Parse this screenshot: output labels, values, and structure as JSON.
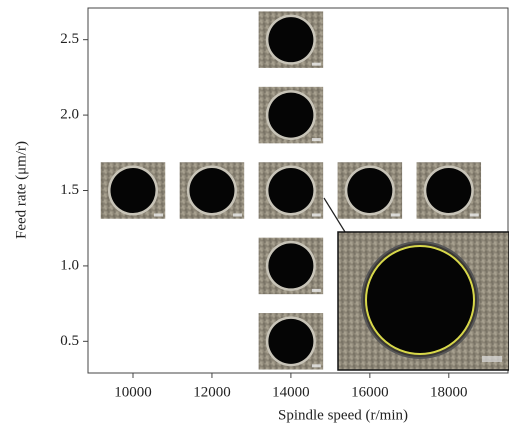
{
  "chart_data": {
    "type": "scatter",
    "x_label": "Spindle speed (r/min)",
    "y_label": "Feed rate (μm/r)",
    "x": [
      10000,
      12000,
      14000,
      16000,
      18000,
      14000,
      14000,
      14000,
      14000
    ],
    "values": [
      1.5,
      1.5,
      1.5,
      1.5,
      1.5,
      2.5,
      2.0,
      1.0,
      0.5
    ],
    "xlim": [
      8860,
      19500
    ],
    "xticks": [
      10000,
      12000,
      14000,
      16000,
      18000
    ],
    "ylim": [
      0.29,
      2.71
    ],
    "yticks": [
      0.5,
      {
        "value": 1,
        "label": "1.0"
      },
      1.5,
      {
        "value": 2,
        "label": "2.0"
      },
      2.5
    ]
  }
}
